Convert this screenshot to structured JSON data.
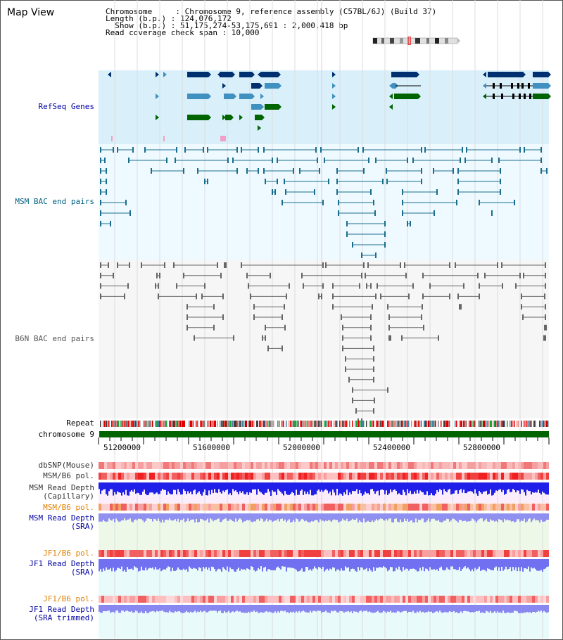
{
  "page": {
    "title": "Map View"
  },
  "header": {
    "chromosome_line": "Chromosome     : Chromosome 9, reference assembly (C57BL/6J) (Build 37)",
    "length_line": "Length (b.p.) : 124,076,172",
    "show_line": "  Show (b.p.) : 51,175,274-53,175,691 : 2,000,418 bp",
    "coverage_line": "Read coverage check span : 10,000"
  },
  "tracks": {
    "refseq": "RefSeq Genes",
    "msm_bac": "MSM BAC end pairs",
    "b6n_bac": "B6N BAC end pairs",
    "repeat": "Repeat",
    "chromosome": "chromosome 9",
    "dbsnp": "dbSNP(Mouse)",
    "msm_b6_pol_1": "MSM/B6 pol.",
    "msm_depth_cap_1": "MSM Read Depth",
    "msm_depth_cap_2": "(Capillary)",
    "msm_b6_pol_2": "MSM/B6 pol.",
    "msm_depth_sra_1": "MSM Read Depth",
    "msm_depth_sra_2": "(SRA)",
    "jf1_b6_pol_1": "JF1/B6 pol.",
    "jf1_depth_sra_1": "JF1 Read Depth",
    "jf1_depth_sra_2": "(SRA)",
    "jf1_b6_pol_2": "JF1/B6 pol.",
    "jf1_depth_trim_1": "JF1 Read Depth",
    "jf1_depth_trim_2": "(SRA trimmed)"
  },
  "axis": {
    "ticks": [
      "51200000",
      "51600000",
      "52000000",
      "52400000",
      "52800000"
    ]
  },
  "colors": {
    "refseq_bg": "#d9f0fb",
    "bac_bg": "#eefaff",
    "b6n_bg": "#f6f6f6",
    "msm_label": "#006080",
    "refseq_label": "#0000a0",
    "orange_label": "#e08000",
    "blue_label": "#0000a0",
    "gene_dark": "#003070",
    "gene_mid": "#4090c0",
    "gene_green": "#006400",
    "chromosome_bar": "#006400"
  }
}
